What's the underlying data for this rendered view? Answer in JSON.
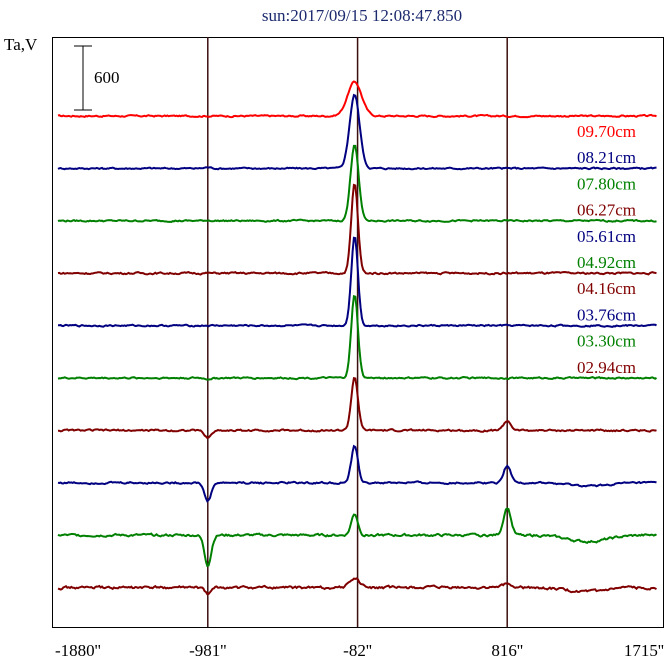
{
  "chart_data": {
    "type": "line",
    "title": "sun:2017/09/15 12:08:47.850",
    "ylabel": "Ta,V",
    "xlabel": "",
    "scale_bar_label": "600",
    "scale_bar_value": 600,
    "x_ticks": [
      {
        "value": -1880,
        "label": "-1880''",
        "line": false
      },
      {
        "value": -981,
        "label": "-981''",
        "line": true
      },
      {
        "value": -82,
        "label": "-82''",
        "line": true
      },
      {
        "value": 816,
        "label": "816''",
        "line": true
      },
      {
        "value": 1715,
        "label": "1715''",
        "line": false
      }
    ],
    "xlim": [
      -1880,
      1715
    ],
    "legend_position": "right",
    "series": [
      {
        "name": "09.70cm",
        "color": "#ff0000",
        "peak": 320,
        "peak_x": -100,
        "peak_width": 42,
        "feature_m981": 0,
        "feature_816": 0,
        "feature_1715": 0,
        "noise": 12
      },
      {
        "name": "08.21cm",
        "color": "#000080",
        "peak": 690,
        "peak_x": -100,
        "peak_width": 30,
        "feature_m981": 10,
        "feature_816": 0,
        "feature_1715": 0,
        "noise": 12
      },
      {
        "name": "07.80cm",
        "color": "#008000",
        "peak": 720,
        "peak_x": -100,
        "peak_width": 24,
        "feature_m981": 5,
        "feature_816": 0,
        "feature_1715": 0,
        "noise": 12
      },
      {
        "name": "06.27cm",
        "color": "#800000",
        "peak": 840,
        "peak_x": -100,
        "peak_width": 20,
        "feature_m981": 0,
        "feature_816": 0,
        "feature_1715": 0,
        "noise": 14
      },
      {
        "name": "05.61cm",
        "color": "#000080",
        "peak": 840,
        "peak_x": -100,
        "peak_width": 20,
        "feature_m981": 0,
        "feature_816": 0,
        "feature_1715": 0,
        "noise": 12
      },
      {
        "name": "04.92cm",
        "color": "#008000",
        "peak": 780,
        "peak_x": -100,
        "peak_width": 20,
        "feature_m981": -10,
        "feature_816": 0,
        "feature_1715": 0,
        "noise": 12
      },
      {
        "name": "04.16cm",
        "color": "#800000",
        "peak": 500,
        "peak_x": -100,
        "peak_width": 20,
        "feature_m981": -70,
        "feature_816": 90,
        "feature_1715": 0,
        "noise": 14
      },
      {
        "name": "03.76cm",
        "color": "#000080",
        "peak": 340,
        "peak_x": -100,
        "peak_width": 20,
        "feature_m981": -170,
        "feature_816": 160,
        "feature_1715": -30,
        "noise": 14
      },
      {
        "name": "03.30cm",
        "color": "#008000",
        "peak": 200,
        "peak_x": -100,
        "peak_width": 20,
        "feature_m981": -280,
        "feature_816": 260,
        "feature_1715": -60,
        "noise": 18
      },
      {
        "name": "02.94cm",
        "color": "#800000",
        "peak": 90,
        "peak_x": -100,
        "peak_width": 30,
        "feature_m981": -60,
        "feature_816": 40,
        "feature_1715": -40,
        "noise": 20
      }
    ]
  }
}
